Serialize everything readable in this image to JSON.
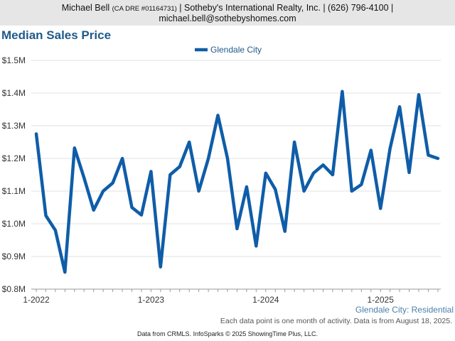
{
  "header": {
    "agent_name": "Michael Bell",
    "agent_dre": "(CA DRE #01164731)",
    "agent_details": "| Sotheby's International Realty, Inc. | (626) 796-4100 |",
    "agent_email": "michael.bell@sothebyshomes.com"
  },
  "chart_title": "Median Sales Price",
  "chart_data": {
    "type": "line",
    "title": "Median Sales Price",
    "series": [
      {
        "name": "Glendale City",
        "color": "#0f5da8",
        "values": [
          1.275,
          1.025,
          0.98,
          0.852,
          1.232,
          1.14,
          1.042,
          1.1,
          1.125,
          1.2,
          1.05,
          1.027,
          1.16,
          0.868,
          1.15,
          1.175,
          1.25,
          1.1,
          1.2,
          1.332,
          1.2,
          0.985,
          1.113,
          0.932,
          1.155,
          1.105,
          0.977,
          1.25,
          1.1,
          1.155,
          1.18,
          1.15,
          1.405,
          1.1,
          1.12,
          1.225,
          1.047,
          1.23,
          1.358,
          1.157,
          1.395,
          1.21,
          1.2
        ]
      }
    ],
    "x_start": "1-2022",
    "x_step": "1 month",
    "x_tick_labels": [
      "1-2022",
      "1-2023",
      "1-2024",
      "1-2025"
    ],
    "y_tick_labels": [
      "$0.8M",
      "$0.9M",
      "$1.0M",
      "$1.1M",
      "$1.2M",
      "$1.3M",
      "$1.4M",
      "$1.5M"
    ],
    "y_unit": "$M",
    "ylim": [
      0.8,
      1.5
    ],
    "grid": "horizontal",
    "legend_position": "top-center"
  },
  "sub_legend": "Glendale City: Residential",
  "footnote": "Each data point is one month of activity. Data is from August 18, 2025.",
  "source": "Data from CRMLS. InfoSparks © 2025 ShowingTime Plus, LLC."
}
